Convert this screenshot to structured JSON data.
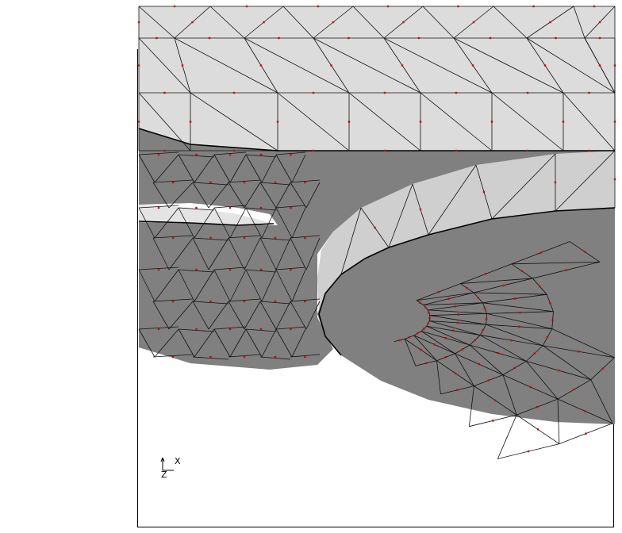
{
  "axis_triad": {
    "x_label": "X",
    "z_label": "Z"
  },
  "colors": {
    "background": "#ffffff",
    "light_surface": "#dcdcdc",
    "dark_surface": "#808080",
    "mesh_edge": "#111111",
    "node_marker": "#d40000",
    "frame": "#000000"
  }
}
